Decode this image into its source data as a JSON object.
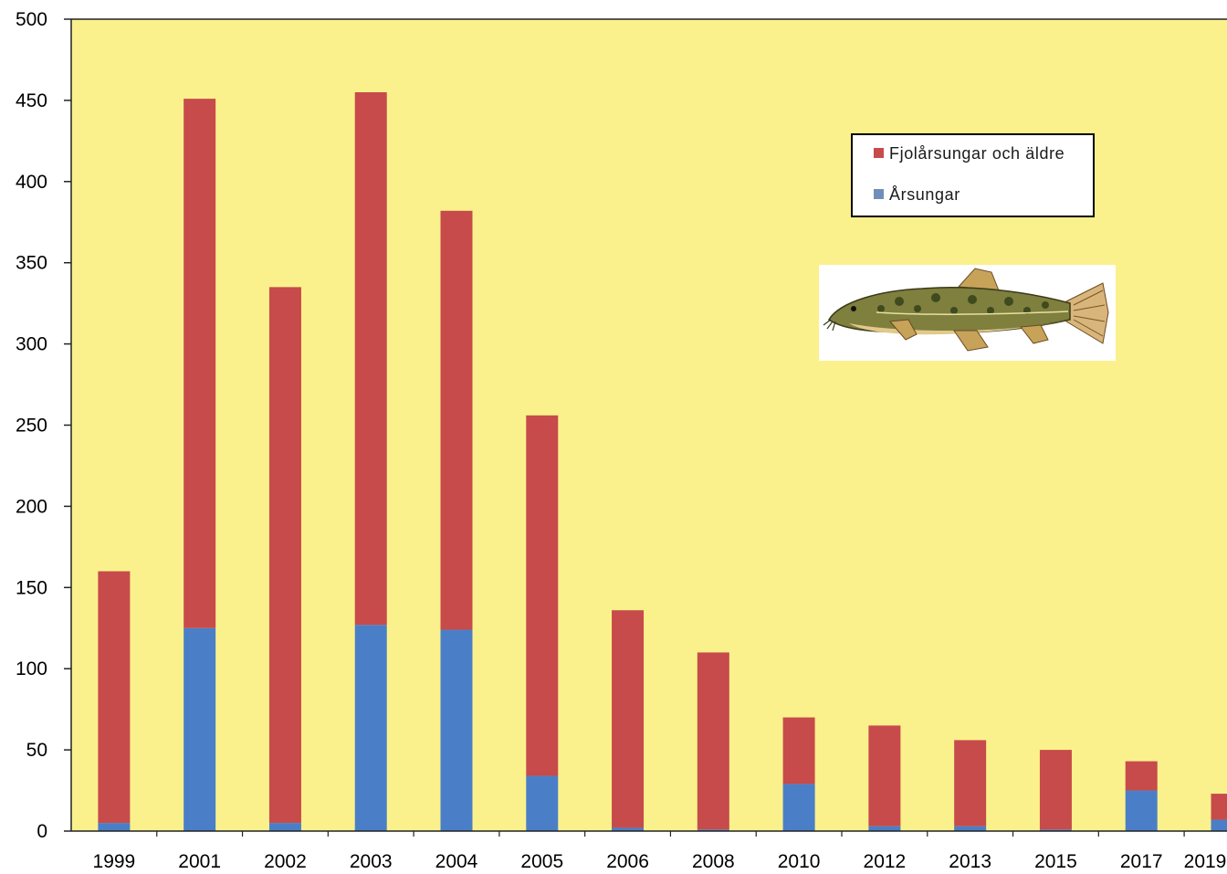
{
  "chart_data": {
    "type": "bar",
    "stacked": true,
    "title": "",
    "xlabel": "",
    "ylabel": "",
    "categories": [
      "1999",
      "2001",
      "2002",
      "2003",
      "2004",
      "2005",
      "2006",
      "2008",
      "2010",
      "2012",
      "2013",
      "2015",
      "2017",
      "2019"
    ],
    "series": [
      {
        "name": "Årsungar",
        "color": "#4a7fc8",
        "values": [
          5,
          125,
          5,
          127,
          124,
          34,
          2,
          1,
          29,
          3,
          3,
          1,
          25,
          7
        ]
      },
      {
        "name": "Fjolårsungar och äldre",
        "color": "#c74b4b",
        "values": [
          155,
          326,
          330,
          328,
          258,
          222,
          134,
          109,
          41,
          62,
          53,
          49,
          18,
          16
        ]
      }
    ],
    "ylim": [
      0,
      500
    ],
    "yticks": [
      0,
      50,
      100,
      150,
      200,
      250,
      300,
      350,
      400,
      450,
      500
    ],
    "grid": false,
    "legend_position": "top-right",
    "plot_background": "#fbf18c",
    "image": "fish-illustration"
  }
}
